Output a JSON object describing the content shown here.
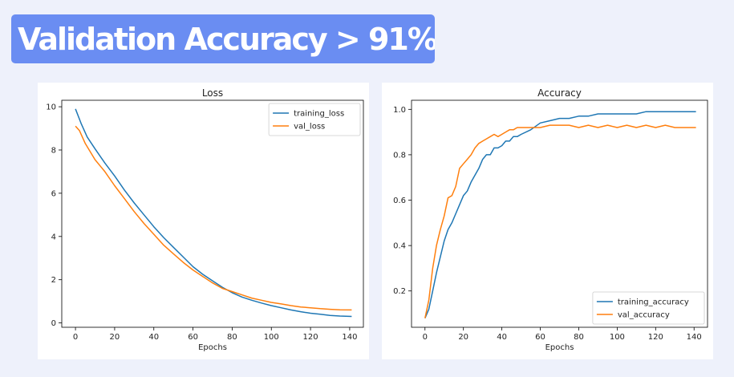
{
  "headline": {
    "text": "Validation Accuracy  > 91%",
    "background": "#6a8df2"
  },
  "colors": {
    "training": "#1f77b4",
    "validation": "#ff7f0e"
  },
  "chart_data": [
    {
      "type": "line",
      "title": "Loss",
      "xlabel": "Epochs",
      "ylabel": "",
      "xlim": [
        -7,
        147
      ],
      "ylim": [
        -0.2,
        10.3
      ],
      "xticks": [
        0,
        20,
        40,
        60,
        80,
        100,
        120,
        140
      ],
      "yticks": [
        0,
        2,
        4,
        6,
        8,
        10
      ],
      "grid": false,
      "legend": "top-right",
      "series": [
        {
          "name": "training_loss",
          "color": "#1f77b4",
          "x": [
            0,
            3,
            6,
            10,
            15,
            20,
            25,
            30,
            35,
            40,
            45,
            50,
            55,
            60,
            65,
            70,
            75,
            80,
            85,
            90,
            95,
            100,
            105,
            110,
            115,
            120,
            125,
            130,
            135,
            141
          ],
          "y": [
            9.9,
            9.2,
            8.6,
            8.05,
            7.4,
            6.8,
            6.15,
            5.55,
            5.0,
            4.45,
            3.95,
            3.5,
            3.05,
            2.6,
            2.25,
            1.95,
            1.65,
            1.4,
            1.2,
            1.05,
            0.92,
            0.8,
            0.7,
            0.6,
            0.52,
            0.45,
            0.4,
            0.35,
            0.32,
            0.3
          ]
        },
        {
          "name": "val_loss",
          "color": "#ff7f0e",
          "x": [
            0,
            2,
            5,
            10,
            15,
            20,
            25,
            30,
            35,
            40,
            45,
            50,
            55,
            60,
            65,
            70,
            75,
            80,
            85,
            90,
            95,
            100,
            105,
            110,
            115,
            120,
            125,
            130,
            135,
            141
          ],
          "y": [
            9.1,
            8.9,
            8.3,
            7.55,
            7.0,
            6.35,
            5.75,
            5.15,
            4.6,
            4.1,
            3.6,
            3.2,
            2.8,
            2.45,
            2.15,
            1.85,
            1.6,
            1.45,
            1.3,
            1.15,
            1.05,
            0.95,
            0.88,
            0.8,
            0.74,
            0.7,
            0.66,
            0.63,
            0.61,
            0.6
          ]
        }
      ]
    },
    {
      "type": "line",
      "title": "Accuracy",
      "xlabel": "Epochs",
      "ylabel": "",
      "xlim": [
        -7,
        147
      ],
      "ylim": [
        0.04,
        1.04
      ],
      "xticks": [
        0,
        20,
        40,
        60,
        80,
        100,
        120,
        140
      ],
      "yticks": [
        0.2,
        0.4,
        0.6,
        0.8,
        1.0
      ],
      "ytick_labels": [
        "0.2",
        "0.4",
        "0.6",
        "0.8",
        "1.0"
      ],
      "grid": false,
      "legend": "bottom-right",
      "series": [
        {
          "name": "training_accuracy",
          "color": "#1f77b4",
          "x": [
            0,
            2,
            4,
            6,
            8,
            10,
            12,
            14,
            16,
            18,
            20,
            22,
            24,
            26,
            28,
            30,
            32,
            34,
            36,
            38,
            40,
            42,
            44,
            46,
            48,
            50,
            55,
            60,
            65,
            70,
            75,
            80,
            85,
            90,
            95,
            100,
            105,
            110,
            115,
            120,
            125,
            130,
            135,
            141
          ],
          "y": [
            0.08,
            0.12,
            0.2,
            0.28,
            0.35,
            0.42,
            0.47,
            0.5,
            0.54,
            0.58,
            0.62,
            0.64,
            0.68,
            0.71,
            0.74,
            0.78,
            0.8,
            0.8,
            0.83,
            0.83,
            0.84,
            0.86,
            0.86,
            0.88,
            0.88,
            0.89,
            0.91,
            0.94,
            0.95,
            0.96,
            0.96,
            0.97,
            0.97,
            0.98,
            0.98,
            0.98,
            0.98,
            0.98,
            0.99,
            0.99,
            0.99,
            0.99,
            0.99,
            0.99
          ]
        },
        {
          "name": "val_accuracy",
          "color": "#ff7f0e",
          "x": [
            0,
            2,
            4,
            6,
            8,
            10,
            12,
            14,
            16,
            18,
            20,
            22,
            24,
            26,
            28,
            30,
            32,
            34,
            36,
            38,
            40,
            42,
            44,
            46,
            48,
            50,
            55,
            60,
            65,
            70,
            75,
            80,
            85,
            90,
            95,
            100,
            105,
            110,
            115,
            120,
            125,
            130,
            135,
            141
          ],
          "y": [
            0.08,
            0.16,
            0.3,
            0.4,
            0.47,
            0.53,
            0.61,
            0.62,
            0.66,
            0.74,
            0.76,
            0.78,
            0.8,
            0.83,
            0.85,
            0.86,
            0.87,
            0.88,
            0.89,
            0.88,
            0.89,
            0.9,
            0.91,
            0.91,
            0.92,
            0.92,
            0.92,
            0.92,
            0.93,
            0.93,
            0.93,
            0.92,
            0.93,
            0.92,
            0.93,
            0.92,
            0.93,
            0.92,
            0.93,
            0.92,
            0.93,
            0.92,
            0.92,
            0.92
          ]
        }
      ]
    }
  ]
}
